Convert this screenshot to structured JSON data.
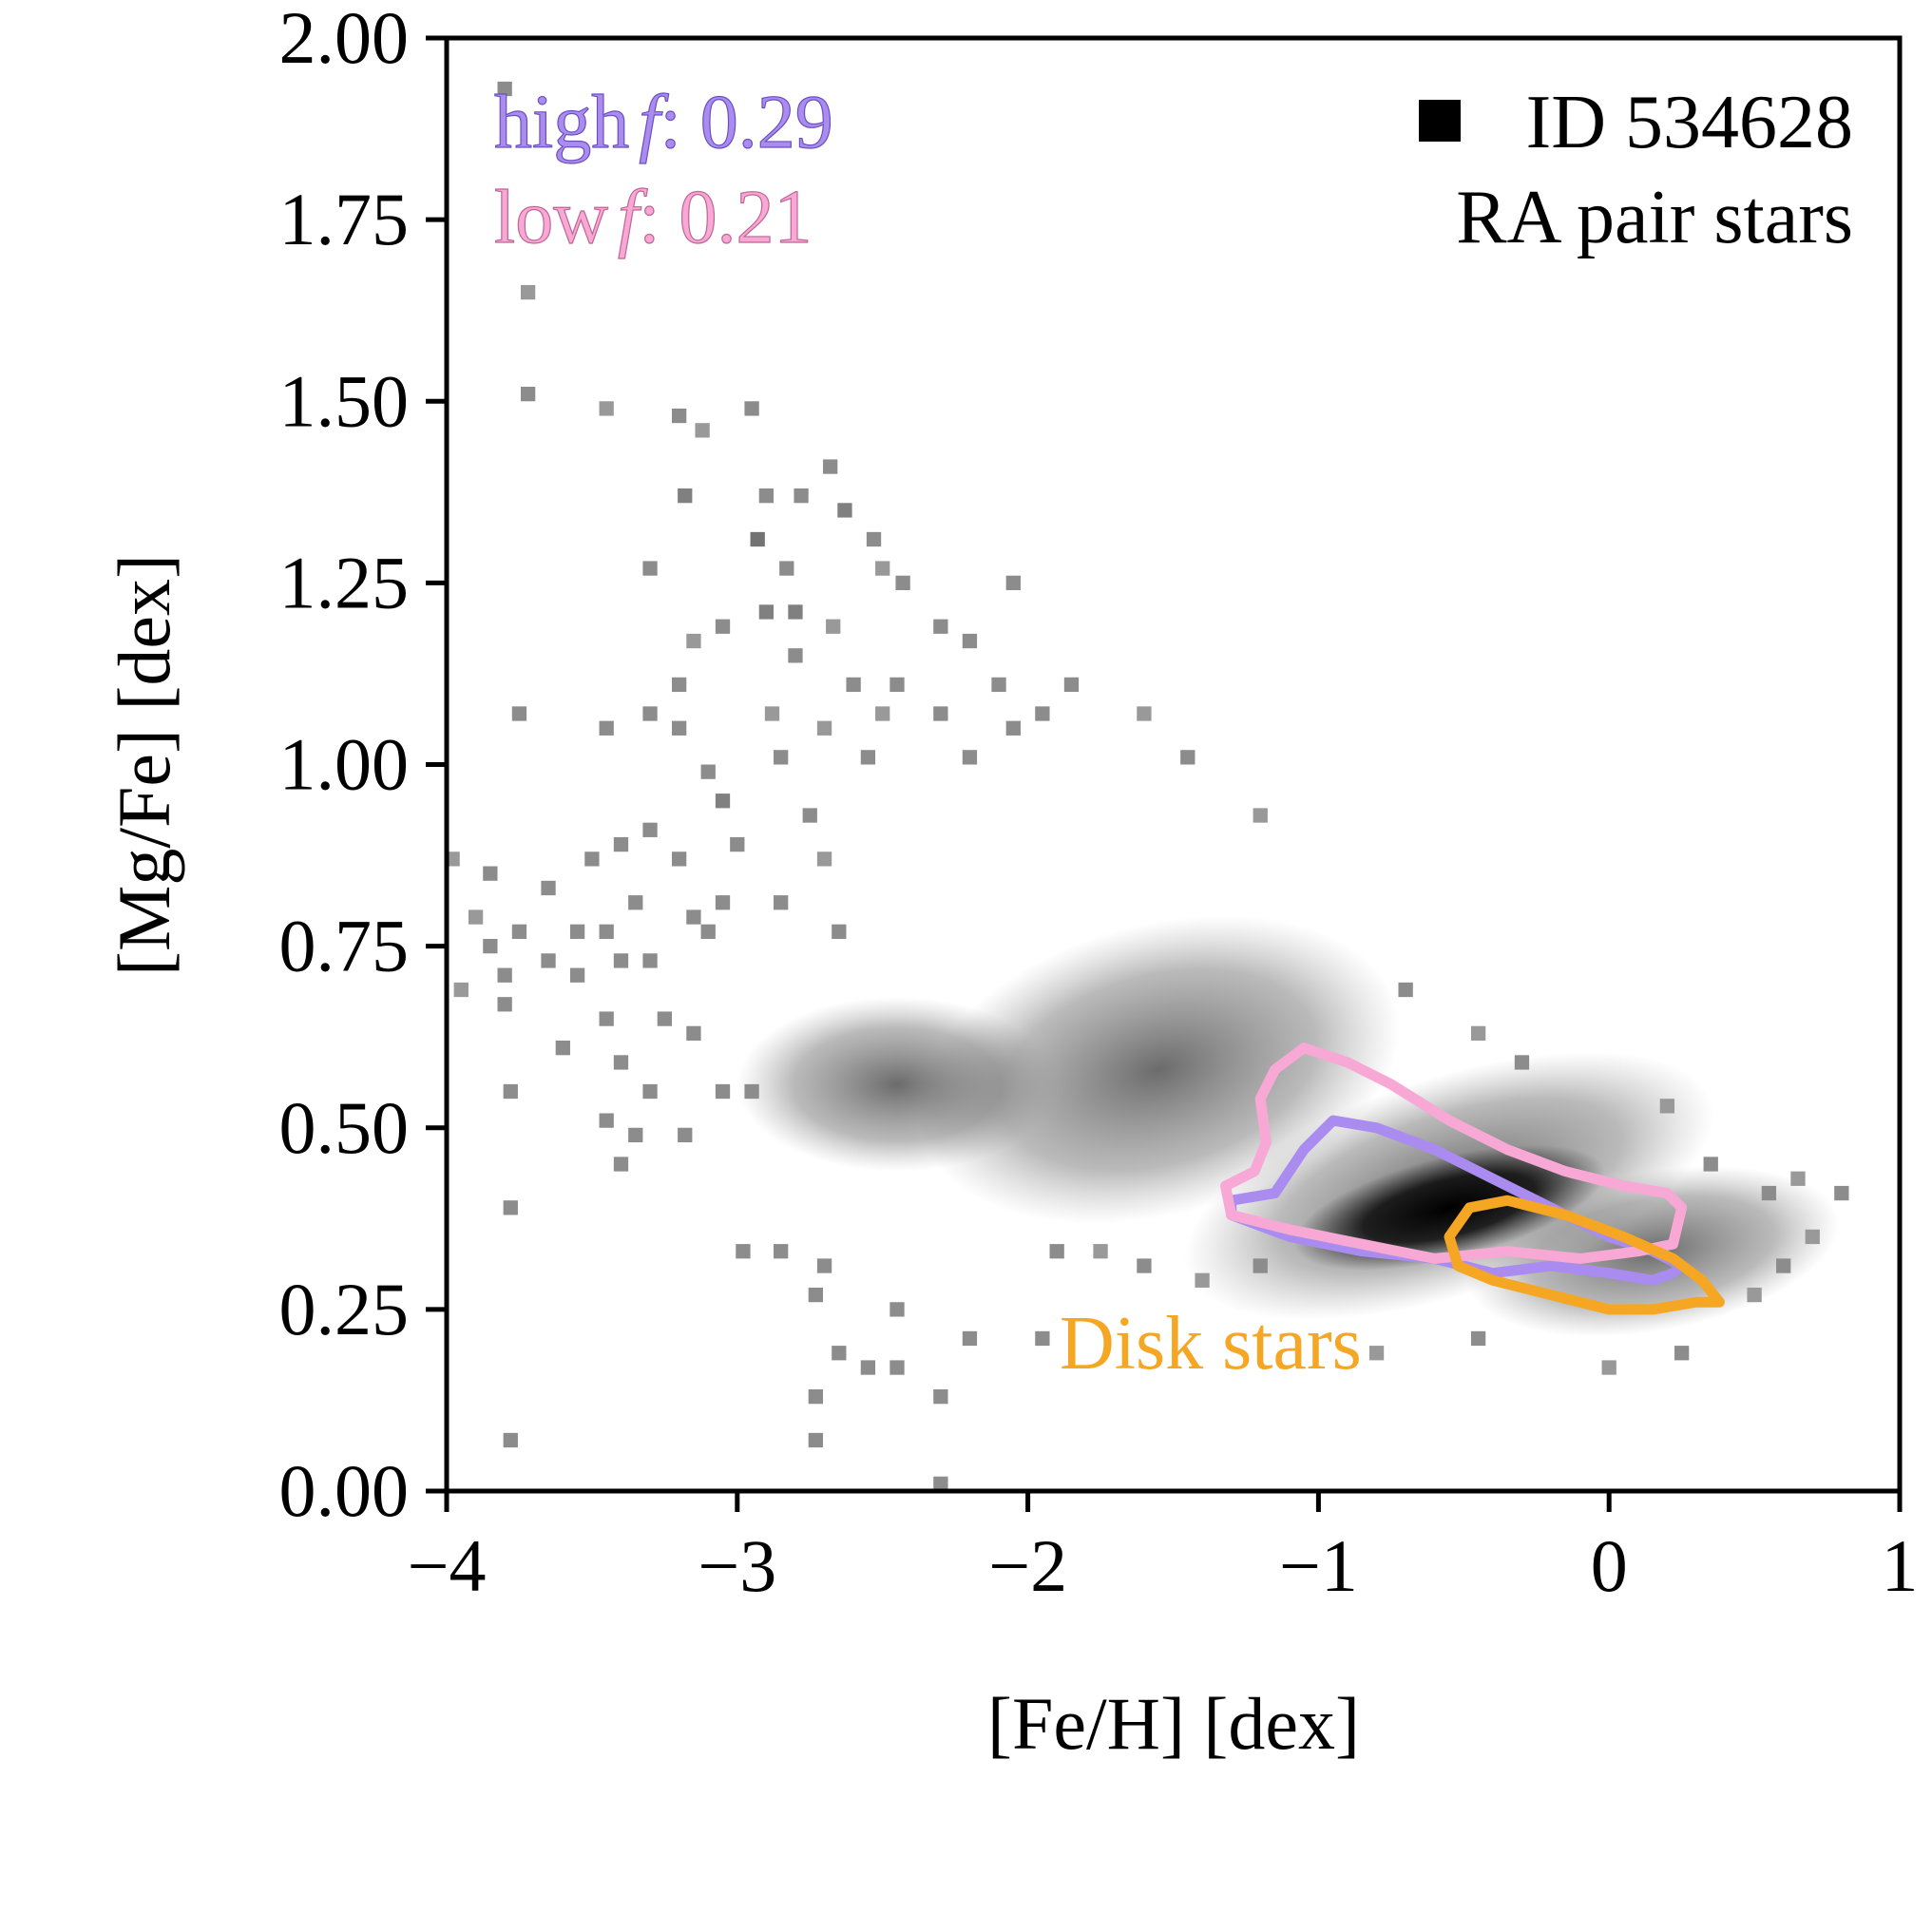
{
  "chart_data": {
    "type": "heatmap",
    "xlabel": "[Fe/H] [dex]",
    "ylabel": "[Mg/Fe] [dex]",
    "xlim": [
      -4,
      1
    ],
    "ylim": [
      0,
      2
    ],
    "xticks": [
      -4,
      -3,
      -2,
      -1,
      0,
      1
    ],
    "xtick_labels": [
      "−4",
      "−3",
      "−2",
      "−1",
      "0",
      "1"
    ],
    "yticks": [
      0,
      0.25,
      0.5,
      0.75,
      1.0,
      1.25,
      1.5,
      1.75,
      2.0
    ],
    "ytick_labels": [
      "0.00",
      "0.25",
      "0.50",
      "0.75",
      "1.00",
      "1.25",
      "1.50",
      "1.75",
      "2.00"
    ],
    "grid": false,
    "legend": {
      "marker_label": "ID 534628",
      "subtitle": "RA pair stars",
      "high_f_label": "high f: 0.29",
      "high_f_name": "high",
      "high_f_value": ": 0.29",
      "low_f_label": "low f: 0.21",
      "low_f_name": "low",
      "low_f_value": ": 0.21",
      "f_symbol": "f",
      "disk_label": "Disk stars"
    },
    "colors": {
      "high_f": "#aa8cf0",
      "low_f": "#f7a8d4",
      "disk": "#f5a623",
      "histogram": "grayscale"
    },
    "contours": [
      {
        "name": "high f",
        "color": "#aa8cf0",
        "points": [
          [
            -1.3,
            0.4
          ],
          [
            -1.15,
            0.41
          ],
          [
            -1.05,
            0.47
          ],
          [
            -0.95,
            0.51
          ],
          [
            -0.8,
            0.5
          ],
          [
            -0.6,
            0.47
          ],
          [
            -0.4,
            0.43
          ],
          [
            -0.2,
            0.39
          ],
          [
            0.0,
            0.35
          ],
          [
            0.15,
            0.33
          ],
          [
            0.25,
            0.31
          ],
          [
            0.22,
            0.3
          ],
          [
            0.15,
            0.29
          ],
          [
            0.0,
            0.3
          ],
          [
            -0.2,
            0.31
          ],
          [
            -0.4,
            0.3
          ],
          [
            -0.6,
            0.32
          ],
          [
            -0.85,
            0.33
          ],
          [
            -1.1,
            0.35
          ],
          [
            -1.3,
            0.38
          ],
          [
            -1.3,
            0.4
          ]
        ]
      },
      {
        "name": "low f",
        "color": "#f7a8d4",
        "points": [
          [
            -1.32,
            0.42
          ],
          [
            -1.22,
            0.44
          ],
          [
            -1.18,
            0.48
          ],
          [
            -1.2,
            0.54
          ],
          [
            -1.15,
            0.58
          ],
          [
            -1.05,
            0.61
          ],
          [
            -0.9,
            0.59
          ],
          [
            -0.75,
            0.56
          ],
          [
            -0.55,
            0.51
          ],
          [
            -0.35,
            0.47
          ],
          [
            -0.15,
            0.44
          ],
          [
            0.05,
            0.42
          ],
          [
            0.2,
            0.41
          ],
          [
            0.25,
            0.39
          ],
          [
            0.22,
            0.34
          ],
          [
            0.1,
            0.33
          ],
          [
            -0.1,
            0.32
          ],
          [
            -0.35,
            0.33
          ],
          [
            -0.6,
            0.32
          ],
          [
            -0.85,
            0.34
          ],
          [
            -1.1,
            0.36
          ],
          [
            -1.3,
            0.38
          ],
          [
            -1.32,
            0.42
          ]
        ]
      },
      {
        "name": "Disk stars",
        "color": "#f5a623",
        "points": [
          [
            -0.55,
            0.35
          ],
          [
            -0.48,
            0.39
          ],
          [
            -0.35,
            0.4
          ],
          [
            -0.15,
            0.38
          ],
          [
            0.05,
            0.35
          ],
          [
            0.22,
            0.32
          ],
          [
            0.32,
            0.29
          ],
          [
            0.38,
            0.26
          ],
          [
            0.3,
            0.26
          ],
          [
            0.15,
            0.25
          ],
          [
            0.0,
            0.25
          ],
          [
            -0.2,
            0.27
          ],
          [
            -0.4,
            0.29
          ],
          [
            -0.52,
            0.31
          ],
          [
            -0.55,
            0.35
          ]
        ]
      }
    ],
    "bins": {
      "dx": 0.05,
      "dy": 0.02
    },
    "histogram_cells": [
      [
        -3.8,
        1.93,
        0.45
      ],
      [
        -3.72,
        1.65,
        0.4
      ],
      [
        -3.72,
        1.51,
        0.45
      ],
      [
        -3.45,
        1.49,
        0.4
      ],
      [
        -3.2,
        1.48,
        0.45
      ],
      [
        -3.12,
        1.46,
        0.4
      ],
      [
        -2.95,
        1.49,
        0.45
      ],
      [
        -2.68,
        1.41,
        0.45
      ],
      [
        -3.18,
        1.37,
        0.5
      ],
      [
        -2.9,
        1.37,
        0.45
      ],
      [
        -2.78,
        1.37,
        0.45
      ],
      [
        -2.63,
        1.35,
        0.5
      ],
      [
        -2.93,
        1.31,
        0.55
      ],
      [
        -2.53,
        1.31,
        0.45
      ],
      [
        -3.3,
        1.27,
        0.45
      ],
      [
        -2.83,
        1.27,
        0.45
      ],
      [
        -2.5,
        1.27,
        0.4
      ],
      [
        -2.43,
        1.25,
        0.45
      ],
      [
        -2.05,
        1.25,
        0.45
      ],
      [
        -2.9,
        1.21,
        0.5
      ],
      [
        -2.8,
        1.21,
        0.5
      ],
      [
        -3.05,
        1.19,
        0.45
      ],
      [
        -2.67,
        1.19,
        0.4
      ],
      [
        -2.3,
        1.19,
        0.45
      ],
      [
        -3.15,
        1.17,
        0.4
      ],
      [
        -2.8,
        1.15,
        0.45
      ],
      [
        -2.2,
        1.17,
        0.45
      ],
      [
        -3.2,
        1.11,
        0.45
      ],
      [
        -2.6,
        1.11,
        0.45
      ],
      [
        -2.45,
        1.11,
        0.45
      ],
      [
        -2.1,
        1.11,
        0.45
      ],
      [
        -1.85,
        1.11,
        0.45
      ],
      [
        -3.3,
        1.07,
        0.45
      ],
      [
        -2.88,
        1.07,
        0.4
      ],
      [
        -2.5,
        1.07,
        0.4
      ],
      [
        -2.3,
        1.07,
        0.45
      ],
      [
        -1.95,
        1.07,
        0.45
      ],
      [
        -1.6,
        1.07,
        0.4
      ],
      [
        -3.75,
        1.07,
        0.45
      ],
      [
        -3.45,
        1.05,
        0.45
      ],
      [
        -3.2,
        1.05,
        0.45
      ],
      [
        -2.7,
        1.05,
        0.4
      ],
      [
        -2.05,
        1.05,
        0.45
      ],
      [
        -3.1,
        0.99,
        0.45
      ],
      [
        -2.85,
        1.01,
        0.45
      ],
      [
        -2.55,
        1.01,
        0.45
      ],
      [
        -2.2,
        1.01,
        0.45
      ],
      [
        -1.45,
        1.01,
        0.45
      ],
      [
        -3.05,
        0.95,
        0.5
      ],
      [
        -2.75,
        0.93,
        0.45
      ],
      [
        -1.2,
        0.93,
        0.4
      ],
      [
        -3.3,
        0.91,
        0.45
      ],
      [
        -3.4,
        0.89,
        0.45
      ],
      [
        -3.0,
        0.89,
        0.45
      ],
      [
        -2.7,
        0.87,
        0.4
      ],
      [
        -3.5,
        0.87,
        0.45
      ],
      [
        -3.2,
        0.87,
        0.45
      ],
      [
        -3.98,
        0.87,
        0.4
      ],
      [
        -3.85,
        0.85,
        0.45
      ],
      [
        -3.65,
        0.83,
        0.45
      ],
      [
        -3.35,
        0.81,
        0.45
      ],
      [
        -3.05,
        0.81,
        0.45
      ],
      [
        -2.85,
        0.81,
        0.45
      ],
      [
        -3.15,
        0.79,
        0.45
      ],
      [
        -3.9,
        0.79,
        0.4
      ],
      [
        -3.75,
        0.77,
        0.45
      ],
      [
        -3.55,
        0.77,
        0.45
      ],
      [
        -3.45,
        0.77,
        0.45
      ],
      [
        -3.1,
        0.77,
        0.45
      ],
      [
        -2.65,
        0.77,
        0.45
      ],
      [
        -3.85,
        0.75,
        0.45
      ],
      [
        -3.65,
        0.73,
        0.45
      ],
      [
        -3.4,
        0.73,
        0.45
      ],
      [
        -3.3,
        0.73,
        0.45
      ],
      [
        -3.8,
        0.71,
        0.45
      ],
      [
        -3.55,
        0.71,
        0.45
      ],
      [
        -3.95,
        0.69,
        0.4
      ],
      [
        -3.8,
        0.67,
        0.45
      ],
      [
        -3.45,
        0.65,
        0.45
      ],
      [
        -3.25,
        0.65,
        0.45
      ],
      [
        -3.15,
        0.63,
        0.45
      ],
      [
        -3.4,
        0.59,
        0.45
      ],
      [
        -3.6,
        0.61,
        0.45
      ],
      [
        -3.78,
        0.55,
        0.45
      ],
      [
        -3.3,
        0.55,
        0.45
      ],
      [
        -3.05,
        0.55,
        0.45
      ],
      [
        -2.95,
        0.55,
        0.45
      ],
      [
        -3.45,
        0.51,
        0.45
      ],
      [
        -3.35,
        0.49,
        0.45
      ],
      [
        -3.18,
        0.49,
        0.45
      ],
      [
        -3.4,
        0.45,
        0.45
      ],
      [
        -3.78,
        0.39,
        0.45
      ],
      [
        -2.98,
        0.33,
        0.45
      ],
      [
        -2.85,
        0.33,
        0.45
      ],
      [
        -2.7,
        0.31,
        0.45
      ],
      [
        -2.73,
        0.27,
        0.45
      ],
      [
        -2.45,
        0.25,
        0.45
      ],
      [
        -2.2,
        0.21,
        0.45
      ],
      [
        -2.65,
        0.19,
        0.45
      ],
      [
        -2.55,
        0.17,
        0.45
      ],
      [
        -2.45,
        0.17,
        0.45
      ],
      [
        -2.73,
        0.13,
        0.45
      ],
      [
        -2.3,
        0.13,
        0.45
      ],
      [
        -2.73,
        0.07,
        0.45
      ],
      [
        -3.78,
        0.07,
        0.45
      ],
      [
        -2.3,
        0.01,
        0.45
      ],
      [
        -0.7,
        0.69,
        0.45
      ],
      [
        -0.45,
        0.63,
        0.4
      ],
      [
        -0.3,
        0.59,
        0.45
      ],
      [
        0.2,
        0.53,
        0.4
      ],
      [
        0.35,
        0.45,
        0.45
      ],
      [
        0.55,
        0.41,
        0.45
      ],
      [
        0.65,
        0.43,
        0.4
      ],
      [
        0.8,
        0.41,
        0.45
      ],
      [
        0.7,
        0.35,
        0.4
      ],
      [
        0.6,
        0.31,
        0.45
      ],
      [
        0.5,
        0.27,
        0.4
      ],
      [
        -1.9,
        0.33,
        0.45
      ],
      [
        -1.75,
        0.33,
        0.4
      ],
      [
        -1.6,
        0.31,
        0.45
      ],
      [
        -1.4,
        0.29,
        0.4
      ],
      [
        -1.2,
        0.31,
        0.45
      ],
      [
        -1.95,
        0.21,
        0.45
      ],
      [
        -0.8,
        0.19,
        0.4
      ],
      [
        -0.45,
        0.21,
        0.45
      ],
      [
        0.0,
        0.17,
        0.4
      ],
      [
        0.25,
        0.19,
        0.45
      ]
    ]
  }
}
